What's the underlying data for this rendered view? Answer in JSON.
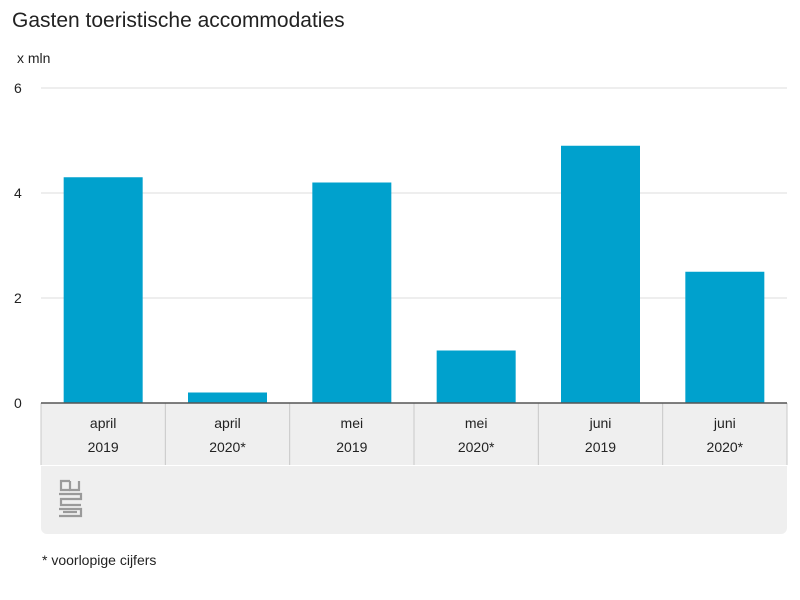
{
  "header": {
    "title": "Gasten toeristische accommodaties",
    "unit": "x mln"
  },
  "footer": {
    "note": "* voorlopige cijfers",
    "logo": "cbs-logo"
  },
  "colors": {
    "bar": "#00a1cd",
    "grid": "#dddddd",
    "axis": "#555555",
    "category_band": "#efefef",
    "separator": "#c8c8c8"
  },
  "chart_data": {
    "type": "bar",
    "categories": [
      "april 2019",
      "april 2020*",
      "mei 2019",
      "mei 2020*",
      "juni 2019",
      "juni 2020*"
    ],
    "category_lines": [
      [
        "april",
        "2019"
      ],
      [
        "april",
        "2020*"
      ],
      [
        "mei",
        "2019"
      ],
      [
        "mei",
        "2020*"
      ],
      [
        "juni",
        "2019"
      ],
      [
        "juni",
        "2020*"
      ]
    ],
    "values": [
      4.3,
      0.2,
      4.2,
      1.0,
      4.9,
      2.5
    ],
    "title": "Gasten toeristische accommodaties",
    "ylabel": "x mln",
    "ylim": [
      0,
      6
    ],
    "yticks": [
      0,
      2,
      4,
      6
    ],
    "grid": true,
    "legend": "none"
  }
}
